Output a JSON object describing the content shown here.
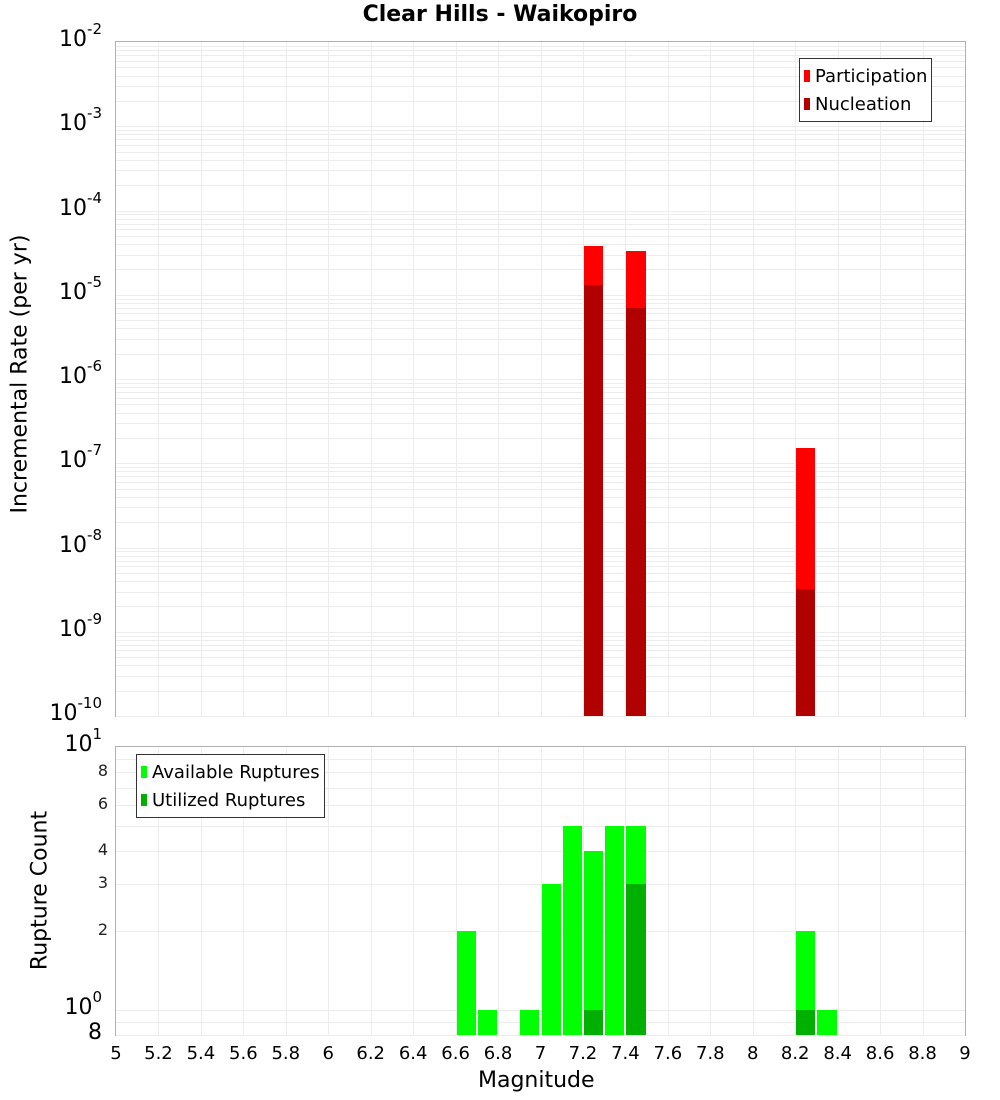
{
  "chart_data": [
    {
      "type": "bar",
      "title": "Clear Hills - Waikopiro",
      "xlabel": "Magnitude",
      "ylabel": "Incremental Rate (per yr)",
      "yscale": "log",
      "ylim": [
        1e-10,
        0.01
      ],
      "xlim": [
        5,
        9
      ],
      "legend_position": "top-right",
      "categories": [
        7.25,
        7.45,
        8.25
      ],
      "series": [
        {
          "name": "Participation",
          "color": "#ff0000",
          "values": [
            3.8e-05,
            3.3e-05,
            1.5e-07
          ]
        },
        {
          "name": "Nucleation",
          "color": "#b00000",
          "values": [
            1.3e-05,
            7e-06,
            3.2e-09
          ]
        }
      ],
      "y_ticks": [
        "10^-2",
        "10^-3",
        "10^-4",
        "10^-5",
        "10^-6",
        "10^-7",
        "10^-8",
        "10^-9",
        "10^-10"
      ],
      "grid": true
    },
    {
      "type": "bar",
      "xlabel": "Magnitude",
      "ylabel": "Rupture Count",
      "yscale": "log",
      "ylim": [
        0.8,
        10
      ],
      "xlim": [
        5,
        9
      ],
      "legend_position": "top-left",
      "categories": [
        6.65,
        6.75,
        6.95,
        7.05,
        7.15,
        7.25,
        7.35,
        7.45,
        8.25,
        8.35
      ],
      "series": [
        {
          "name": "Available Ruptures",
          "color": "#00ff00",
          "values": [
            2,
            1,
            1,
            3,
            5,
            4,
            5,
            5,
            2,
            1
          ]
        },
        {
          "name": "Utilized Ruptures",
          "color": "#00b000",
          "values": [
            0,
            0,
            0,
            0,
            0,
            1,
            0,
            3,
            1,
            0
          ]
        }
      ],
      "y_ticks": [
        "10^1",
        "8",
        "6",
        "4",
        "3",
        "2",
        "10^0",
        "8"
      ],
      "x_ticks": [
        "5",
        "5.2",
        "5.4",
        "5.6",
        "5.8",
        "6",
        "6.2",
        "6.4",
        "6.6",
        "6.8",
        "7",
        "7.2",
        "7.4",
        "7.6",
        "7.8",
        "8",
        "8.2",
        "8.4",
        "8.6",
        "8.8",
        "9"
      ],
      "grid": true
    }
  ],
  "labels": {
    "title": "Clear Hills - Waikopiro",
    "top_ylabel": "Incremental Rate (per yr)",
    "bottom_ylabel": "Rupture Count",
    "xlabel": "Magnitude",
    "legend_top": [
      "Participation",
      "Nucleation"
    ],
    "legend_bottom": [
      "Available Ruptures",
      "Utilized Ruptures"
    ]
  }
}
